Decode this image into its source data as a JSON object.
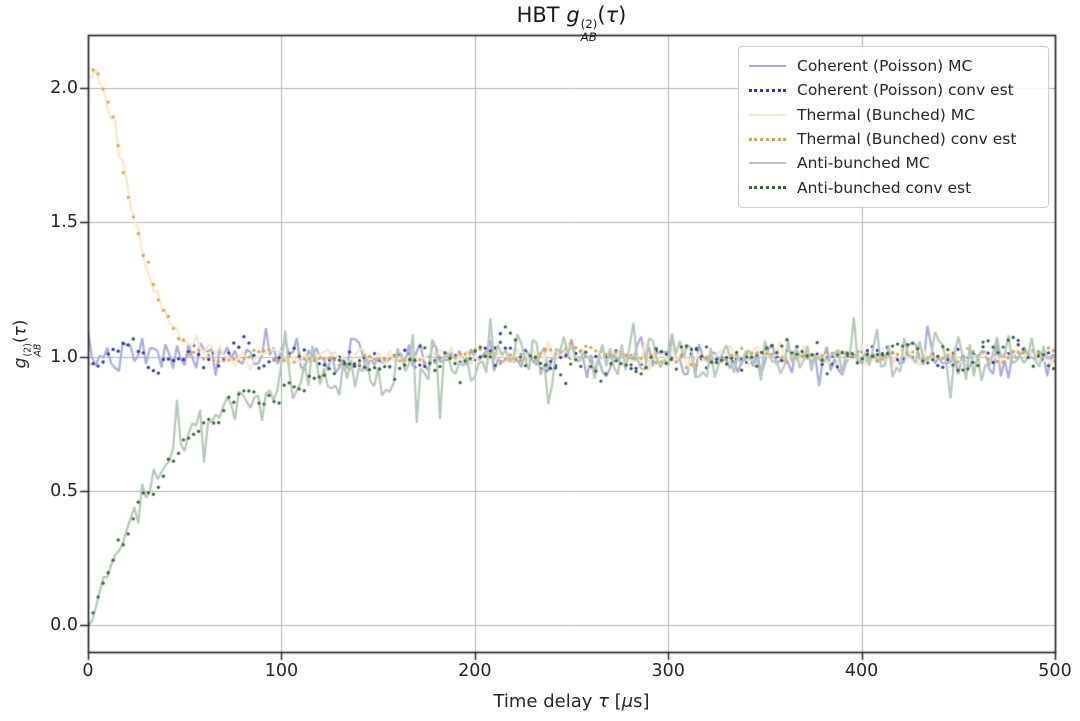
{
  "figure": {
    "background": "#ffffff"
  },
  "chart_data": {
    "type": "line",
    "title": {
      "prefix": "HBT ",
      "symbol": "g",
      "sup": "(2)",
      "sub": "AB",
      "arg_pre": "(",
      "arg_tau": "τ",
      "arg_post": ")"
    },
    "ylabel": {
      "symbol": "g",
      "sup": "(2)",
      "sub": "AB",
      "arg_pre": "(",
      "arg_tau": "τ",
      "arg_post": ")"
    },
    "xlabel": {
      "pre": "Time delay ",
      "tau": "τ",
      "mid": " [",
      "mu": "μ",
      "post": "s]"
    },
    "xlim": [
      0,
      500
    ],
    "ylim": [
      -0.1,
      2.2
    ],
    "xticks": [
      0,
      100,
      200,
      300,
      400,
      500
    ],
    "xtick_labels": [
      "0",
      "100",
      "200",
      "300",
      "400",
      "500"
    ],
    "yticks": [
      0.0,
      0.5,
      1.0,
      1.5,
      2.0
    ],
    "ytick_labels": [
      "0.0",
      "0.5",
      "1.0",
      "1.5",
      "2.0"
    ],
    "grid": true,
    "grid_color": "#b3b3b3",
    "spine_color": "#262626",
    "legend_position": "upper right",
    "series": [
      {
        "label": "Coherent (Poisson) MC",
        "role": "mc",
        "line": "solid",
        "color": "#a8ade0",
        "trend": {
          "kind": "const",
          "base": 1.0
        },
        "noise_sigma": 0.035,
        "seed": 7
      },
      {
        "label": "Coherent (Poisson) conv est",
        "role": "est",
        "line": "dotted",
        "color": "#2b35b8",
        "trend": {
          "kind": "const",
          "base": 1.0
        },
        "noise_sigma": 0.02,
        "ar": 0.6,
        "seed": 8
      },
      {
        "label": "Thermal (Bunched) MC",
        "role": "mc",
        "line": "solid",
        "color": "#f7e9c9",
        "trend": {
          "kind": "gauss",
          "base": 1.0,
          "amp": 1.07,
          "tau": 28.5
        },
        "noise_sigma": 0.022,
        "seed": 21
      },
      {
        "label": "Thermal (Bunched) conv est",
        "role": "est",
        "line": "dotted",
        "color": "#e3a43e",
        "trend": {
          "kind": "gauss",
          "base": 1.0,
          "amp": 1.07,
          "tau": 28.5
        },
        "noise_sigma": 0.012,
        "ar": 0.6,
        "seed": 22
      },
      {
        "label": "Anti-bunched MC",
        "role": "mc",
        "line": "solid",
        "color": "#b5c9b7",
        "trend": {
          "kind": "exprise",
          "base": 1.0,
          "amp": -1.0,
          "tau": 45
        },
        "noise_sigma": 0.055,
        "scale_by_trend": true,
        "spikes": true,
        "seed": 33
      },
      {
        "label": "Anti-bunched conv est",
        "role": "est",
        "line": "dotted",
        "color": "#306b30",
        "trend": {
          "kind": "exprise",
          "base": 1.0,
          "amp": -1.0,
          "tau": 45
        },
        "noise_sigma": 0.031,
        "ar": 0.72,
        "scale_by_trend": true,
        "seed": 34
      }
    ],
    "trend_samples": {
      "x": [
        0,
        10,
        20,
        30,
        40,
        50,
        60,
        70,
        80,
        90,
        100,
        150,
        200,
        250,
        300,
        350,
        400,
        450,
        500
      ],
      "coherent": [
        1.0,
        1.0,
        1.0,
        1.0,
        1.0,
        1.0,
        1.0,
        1.0,
        1.0,
        1.0,
        1.0,
        1.0,
        1.0,
        1.0,
        1.0,
        1.0,
        1.0,
        1.0,
        1.0
      ],
      "thermal": [
        2.07,
        1.95,
        1.65,
        1.35,
        1.15,
        1.05,
        1.01,
        1.0,
        1.0,
        1.0,
        1.0,
        1.0,
        1.0,
        1.0,
        1.0,
        1.0,
        1.0,
        1.0,
        1.0
      ],
      "antibunched": [
        0.0,
        0.2,
        0.36,
        0.49,
        0.59,
        0.67,
        0.74,
        0.79,
        0.83,
        0.86,
        0.89,
        0.96,
        0.99,
        1.0,
        1.0,
        1.0,
        1.0,
        1.0,
        1.0
      ]
    }
  }
}
